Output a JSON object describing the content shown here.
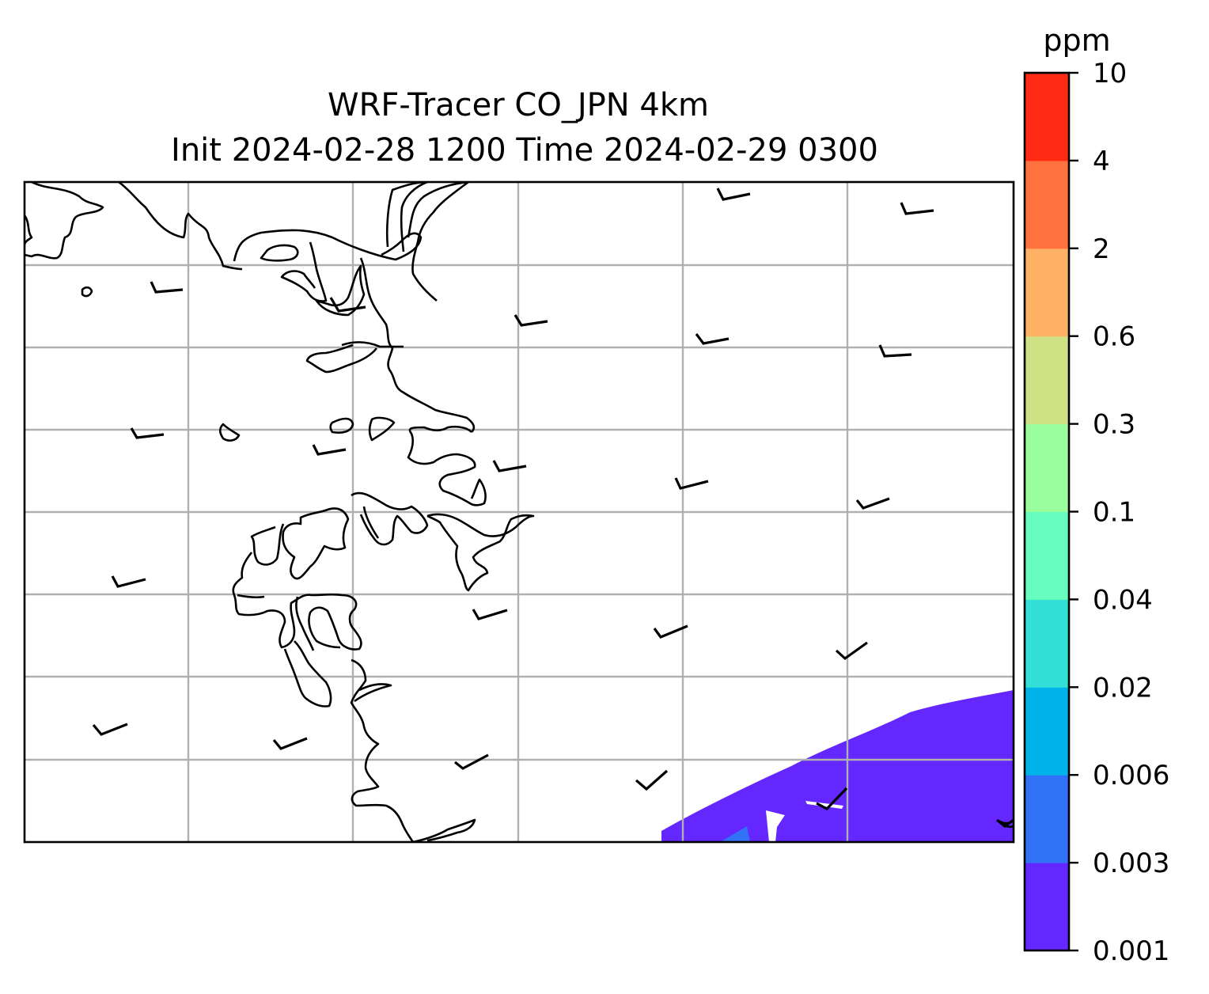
{
  "title": {
    "line1": "WRF-Tracer CO_JPN 4km",
    "line2": "Init 2024-02-28 1200 Time 2024-02-29 0300"
  },
  "colorbar": {
    "unit": "ppm",
    "levels": [
      "0.001",
      "0.003",
      "0.006",
      "0.02",
      "0.04",
      "0.1",
      "0.3",
      "0.6",
      "2",
      "4",
      "10"
    ],
    "colors": [
      "#6427ff",
      "#3272f6",
      "#00b4ea",
      "#33e0d7",
      "#66fdbe",
      "#9bfe9c",
      "#cfe184",
      "#ffb266",
      "#ff7240",
      "#ff2a14"
    ]
  },
  "map": {
    "fill_color_low": "#6427ff",
    "fill_color_mid": "#3272f6",
    "grid_color": "#b0b0b0"
  }
}
